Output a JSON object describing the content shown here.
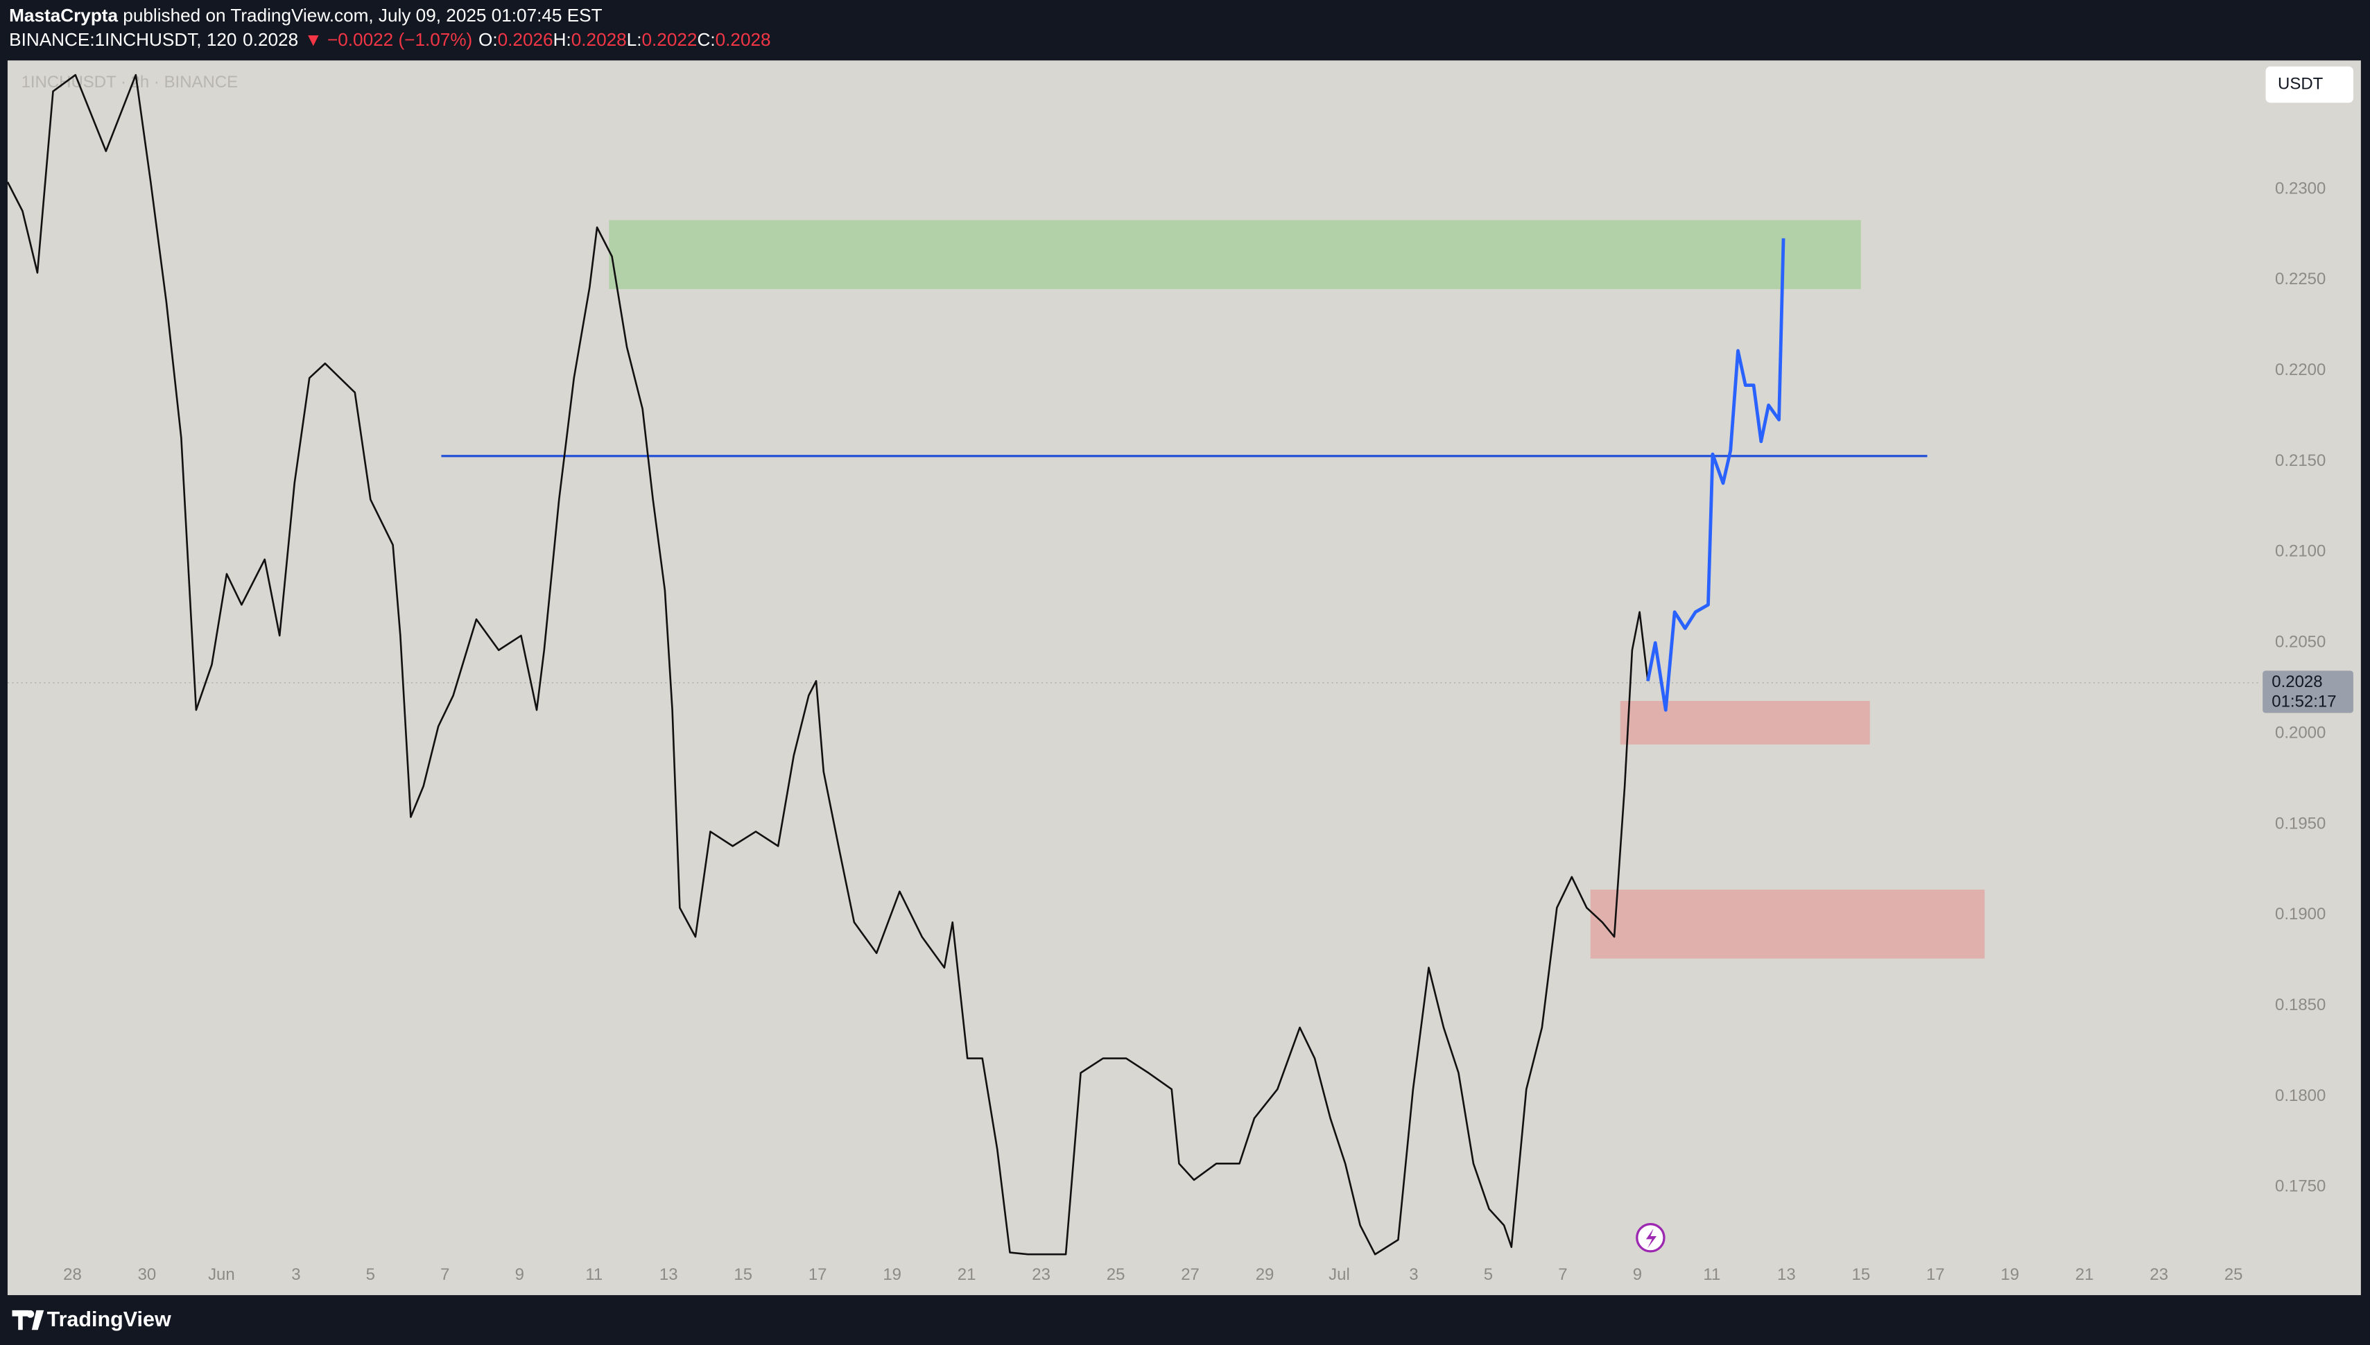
{
  "header": {
    "author": "MastaCrypta",
    "published": "published on TradingView.com, July 09, 2025 01:07:45 EST",
    "quote": [
      {
        "text": "BINANCE:1INCHUSDT, 120",
        "color": "#ffffff"
      },
      {
        "text": "0.2028",
        "color": "#ffffff"
      },
      {
        "text": "▼ −0.0022 (−1.07%)",
        "color": "#f23645"
      },
      {
        "text": "O:",
        "color": "#ffffff"
      },
      {
        "text": "0.2026",
        "color": "#f23645"
      },
      {
        "text": "H:",
        "color": "#ffffff"
      },
      {
        "text": "0.2028",
        "color": "#f23645"
      },
      {
        "text": "L:",
        "color": "#ffffff"
      },
      {
        "text": "0.2022",
        "color": "#f23645"
      },
      {
        "text": "C:",
        "color": "#ffffff"
      },
      {
        "text": "0.2028",
        "color": "#f23645"
      }
    ]
  },
  "currency": "USDT",
  "watermark": "1INCHUSDT · 2h · BINANCE",
  "footer": "TradingView",
  "chart_data": {
    "type": "line",
    "xlim": [
      -0.87,
      29.35
    ],
    "ylim": [
      0.1713,
      0.2371
    ],
    "xticks": [
      {
        "value": 0,
        "label": "28"
      },
      {
        "value": 1,
        "label": "30"
      },
      {
        "value": 2,
        "label": "Jun"
      },
      {
        "value": 3,
        "label": "3"
      },
      {
        "value": 4,
        "label": "5"
      },
      {
        "value": 5,
        "label": "7"
      },
      {
        "value": 6,
        "label": "9"
      },
      {
        "value": 7,
        "label": "11"
      },
      {
        "value": 8,
        "label": "13"
      },
      {
        "value": 9,
        "label": "15"
      },
      {
        "value": 10,
        "label": "17"
      },
      {
        "value": 11,
        "label": "19"
      },
      {
        "value": 12,
        "label": "21"
      },
      {
        "value": 13,
        "label": "23"
      },
      {
        "value": 14,
        "label": "25"
      },
      {
        "value": 15,
        "label": "27"
      },
      {
        "value": 16,
        "label": "29"
      },
      {
        "value": 17,
        "label": "Jul"
      },
      {
        "value": 18,
        "label": "3"
      },
      {
        "value": 19,
        "label": "5"
      },
      {
        "value": 20,
        "label": "7"
      },
      {
        "value": 21,
        "label": "9"
      },
      {
        "value": 22,
        "label": "11"
      },
      {
        "value": 23,
        "label": "13"
      },
      {
        "value": 24,
        "label": "15"
      },
      {
        "value": 25,
        "label": "17"
      },
      {
        "value": 26,
        "label": "19"
      },
      {
        "value": 27,
        "label": "21"
      },
      {
        "value": 28,
        "label": "23"
      },
      {
        "value": 29,
        "label": "25"
      }
    ],
    "yticks": [
      {
        "value": 0.23,
        "label": "0.2300"
      },
      {
        "value": 0.225,
        "label": "0.2250"
      },
      {
        "value": 0.22,
        "label": "0.2200"
      },
      {
        "value": 0.215,
        "label": "0.2150"
      },
      {
        "value": 0.21,
        "label": "0.2100"
      },
      {
        "value": 0.205,
        "label": "0.2050"
      },
      {
        "value": 0.2,
        "label": "0.2000"
      },
      {
        "value": 0.195,
        "label": "0.1950"
      },
      {
        "value": 0.19,
        "label": "0.1900"
      },
      {
        "value": 0.185,
        "label": "0.1850"
      },
      {
        "value": 0.18,
        "label": "0.1800"
      },
      {
        "value": 0.175,
        "label": "0.1750"
      }
    ],
    "series": [
      {
        "color": "#111111",
        "x": [
          -0.87,
          -0.67,
          -0.47,
          -0.26,
          0.04,
          0.45,
          0.85,
          1.05,
          1.26,
          1.46,
          1.56,
          1.66,
          1.87,
          2.07,
          2.27,
          2.58,
          2.78,
          2.98,
          3.18,
          3.39,
          3.59,
          3.79,
          4.0,
          4.3,
          4.4,
          4.54,
          4.71,
          4.91,
          5.11,
          5.42,
          5.72,
          6.02,
          6.23,
          6.33,
          6.53,
          6.73,
          6.94,
          7.04,
          7.24,
          7.44,
          7.65,
          7.79,
          7.95,
          8.05,
          8.15,
          8.36,
          8.56,
          8.86,
          9.17,
          9.47,
          9.68,
          9.88,
          9.98,
          10.08,
          10.28,
          10.49,
          10.79,
          11.1,
          11.4,
          11.7,
          11.81,
          12.01,
          12.21,
          12.41,
          12.58,
          12.82,
          13.33,
          13.53,
          13.83,
          14.14,
          14.44,
          14.75,
          14.85,
          15.05,
          15.35,
          15.66,
          15.86,
          16.17,
          16.47,
          16.67,
          16.88,
          17.08,
          17.28,
          17.48,
          17.79,
          17.99,
          18.2,
          18.4,
          18.6,
          18.8,
          19.01,
          19.21,
          19.31,
          19.51,
          19.72,
          19.92,
          20.12,
          20.32,
          20.53,
          20.69,
          20.83,
          20.93,
          21.03,
          21.14
        ],
        "values": [
          0.2304,
          0.2288,
          0.2254,
          0.2354,
          0.2363,
          0.2321,
          0.2363,
          0.2304,
          0.2238,
          0.2163,
          0.2088,
          0.2013,
          0.2038,
          0.2088,
          0.2071,
          0.2096,
          0.2054,
          0.2138,
          0.2196,
          0.2204,
          0.2196,
          0.2188,
          0.2129,
          0.2104,
          0.2054,
          0.1954,
          0.1971,
          0.2004,
          0.2021,
          0.2063,
          0.2046,
          0.2054,
          0.2013,
          0.2046,
          0.2129,
          0.2196,
          0.2246,
          0.2279,
          0.2263,
          0.2213,
          0.2179,
          0.2129,
          0.2079,
          0.2013,
          0.1904,
          0.1888,
          0.1946,
          0.1938,
          0.1946,
          0.1938,
          0.1988,
          0.2021,
          0.2029,
          0.1979,
          0.1938,
          0.1896,
          0.1879,
          0.1913,
          0.1888,
          0.1871,
          0.1896,
          0.1821,
          0.1821,
          0.1771,
          0.1714,
          0.1713,
          0.1713,
          0.1813,
          0.1821,
          0.1821,
          0.1813,
          0.1804,
          0.1763,
          0.1754,
          0.1763,
          0.1763,
          0.1788,
          0.1804,
          0.1838,
          0.1821,
          0.1788,
          0.1763,
          0.1729,
          0.1713,
          0.1721,
          0.1804,
          0.1871,
          0.1838,
          0.1813,
          0.1763,
          0.1738,
          0.1729,
          0.1717,
          0.1804,
          0.1838,
          0.1904,
          0.1921,
          0.1904,
          0.1896,
          0.1888,
          0.1971,
          0.2046,
          0.2067,
          0.2029
        ]
      },
      {
        "color": "#2962ff",
        "x": [
          21.14,
          21.24,
          21.38,
          21.5,
          21.64,
          21.78,
          21.95,
          22.01,
          22.15,
          22.25,
          22.35,
          22.45,
          22.56,
          22.66,
          22.76,
          22.9,
          22.96
        ],
        "values": [
          0.2029,
          0.205,
          0.2013,
          0.2067,
          0.2058,
          0.2067,
          0.2071,
          0.2154,
          0.2138,
          0.2156,
          0.2211,
          0.2192,
          0.2192,
          0.2161,
          0.2181,
          0.2173,
          0.2273
        ]
      }
    ],
    "zones": [
      {
        "xlim": [
          7.2,
          24.0
        ],
        "ylim": [
          0.2245,
          0.2283
        ],
        "color": "#b3d1a8"
      },
      {
        "xlim": [
          20.77,
          24.12
        ],
        "ylim": [
          0.1994,
          0.2018
        ],
        "color": "#e0b0ac"
      },
      {
        "xlim": [
          20.37,
          25.66
        ],
        "ylim": [
          0.1876,
          0.1914
        ],
        "color": "#e0b0ac"
      }
    ],
    "hline": {
      "value": 0.2153,
      "xlim": [
        4.95,
        24.89
      ],
      "color": "#2451d6"
    },
    "last_price": {
      "value": 0.2028,
      "label": "0.2028"
    },
    "countdown": "01:52:17"
  }
}
